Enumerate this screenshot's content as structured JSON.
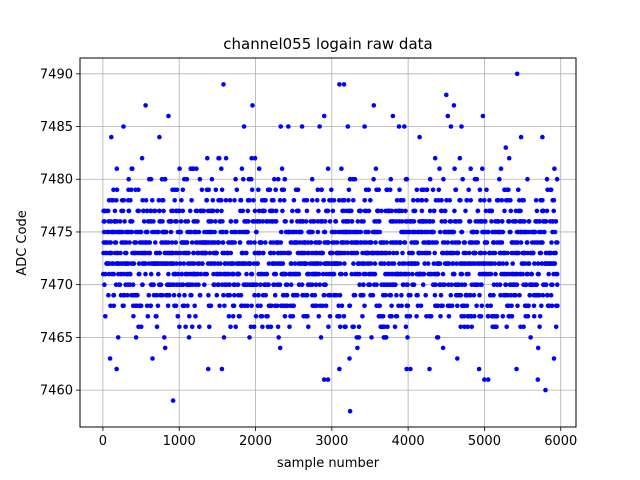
{
  "chart_data": {
    "type": "scatter",
    "title": "channel055 logain raw data",
    "xlabel": "sample number",
    "ylabel": "ADC Code",
    "xlim": [
      -300,
      6200
    ],
    "ylim": [
      7456.5,
      7491.5
    ],
    "xticks": [
      0,
      1000,
      2000,
      3000,
      4000,
      5000,
      6000
    ],
    "xtick_labels": [
      "0",
      "1000",
      "2000",
      "3000",
      "4000",
      "5000",
      "6000"
    ],
    "yticks": [
      7460,
      7465,
      7470,
      7475,
      7480,
      7485,
      7490
    ],
    "ytick_labels": [
      "7460",
      "7465",
      "7470",
      "7475",
      "7480",
      "7485",
      "7490"
    ],
    "grid": true,
    "marker_color": "#0000ff",
    "n_samples": 5950,
    "dense_band": [
      7463,
      7482
    ],
    "points": [
      {
        "x": 920,
        "y": 7459
      },
      {
        "x": 3240,
        "y": 7458
      },
      {
        "x": 5800,
        "y": 7460
      },
      {
        "x": 180,
        "y": 7462
      },
      {
        "x": 1380,
        "y": 7462
      },
      {
        "x": 2900,
        "y": 7461
      },
      {
        "x": 2950,
        "y": 7461
      },
      {
        "x": 3100,
        "y": 7462
      },
      {
        "x": 3980,
        "y": 7462
      },
      {
        "x": 4030,
        "y": 7462
      },
      {
        "x": 5000,
        "y": 7461
      },
      {
        "x": 5050,
        "y": 7461
      },
      {
        "x": 5420,
        "y": 7462
      },
      {
        "x": 5700,
        "y": 7461
      },
      {
        "x": 4930,
        "y": 7462
      },
      {
        "x": 4280,
        "y": 7462
      },
      {
        "x": 1560,
        "y": 7462
      },
      {
        "x": 110,
        "y": 7484
      },
      {
        "x": 270,
        "y": 7485
      },
      {
        "x": 560,
        "y": 7487
      },
      {
        "x": 740,
        "y": 7484
      },
      {
        "x": 860,
        "y": 7486
      },
      {
        "x": 1580,
        "y": 7489
      },
      {
        "x": 1850,
        "y": 7485
      },
      {
        "x": 1960,
        "y": 7487
      },
      {
        "x": 2330,
        "y": 7485
      },
      {
        "x": 2430,
        "y": 7485
      },
      {
        "x": 2610,
        "y": 7485
      },
      {
        "x": 2840,
        "y": 7485
      },
      {
        "x": 2900,
        "y": 7486
      },
      {
        "x": 3100,
        "y": 7489
      },
      {
        "x": 3160,
        "y": 7489
      },
      {
        "x": 3210,
        "y": 7485
      },
      {
        "x": 3430,
        "y": 7485
      },
      {
        "x": 3550,
        "y": 7487
      },
      {
        "x": 3800,
        "y": 7486
      },
      {
        "x": 3880,
        "y": 7485
      },
      {
        "x": 3950,
        "y": 7485
      },
      {
        "x": 4150,
        "y": 7484
      },
      {
        "x": 4500,
        "y": 7488
      },
      {
        "x": 4520,
        "y": 7486
      },
      {
        "x": 4560,
        "y": 7485
      },
      {
        "x": 4600,
        "y": 7487
      },
      {
        "x": 4700,
        "y": 7485
      },
      {
        "x": 4980,
        "y": 7486
      },
      {
        "x": 5280,
        "y": 7483
      },
      {
        "x": 5430,
        "y": 7490
      },
      {
        "x": 5480,
        "y": 7484
      },
      {
        "x": 5760,
        "y": 7484
      }
    ]
  }
}
